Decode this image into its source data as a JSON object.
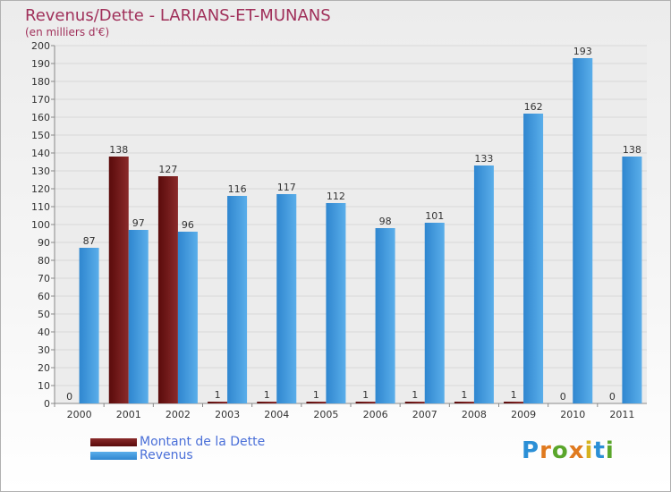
{
  "chart_data": {
    "type": "bar",
    "title": "Revenus/Dette - LARIANS-ET-MUNANS",
    "subtitle": "(en milliers d'€)",
    "categories": [
      "2000",
      "2001",
      "2002",
      "2003",
      "2004",
      "2005",
      "2006",
      "2007",
      "2008",
      "2009",
      "2010",
      "2011"
    ],
    "series": [
      {
        "name": "Montant de la Dette",
        "color": "#6e1616",
        "values": [
          0,
          138,
          127,
          1,
          1,
          1,
          1,
          1,
          1,
          1,
          0,
          0
        ]
      },
      {
        "name": "Revenus",
        "color": "#3d92d6",
        "values": [
          87,
          97,
          96,
          116,
          117,
          112,
          98,
          101,
          133,
          162,
          193,
          138
        ]
      }
    ],
    "ylim": [
      0,
      200
    ],
    "yticks": [
      0,
      10,
      20,
      30,
      40,
      50,
      60,
      70,
      80,
      90,
      100,
      110,
      120,
      130,
      140,
      150,
      160,
      170,
      180,
      190,
      200
    ],
    "grid": true,
    "legend_position": "bottom-left"
  },
  "branding": {
    "logo_letters": [
      "P",
      "r",
      "o",
      "x",
      "i",
      "t",
      "i"
    ],
    "logo_colors": [
      "#2b8fd6",
      "#e07a1f",
      "#5aa62b",
      "#e07a1f",
      "#d6b21f",
      "#2b8fd6",
      "#5aa62b"
    ]
  }
}
